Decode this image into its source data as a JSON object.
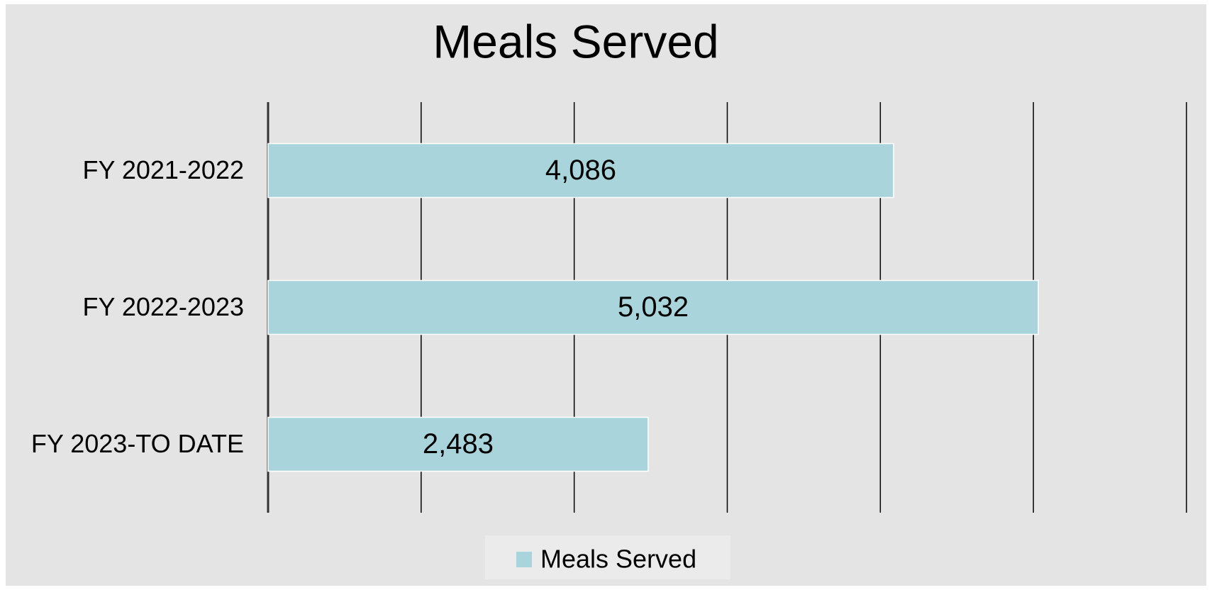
{
  "chart_data": {
    "type": "hbar",
    "title": "Meals Served",
    "categories": [
      "FY 2021-2022",
      "FY 2022-2023",
      "FY 2023-TO DATE"
    ],
    "series": [
      {
        "name": "Meals Served",
        "color": "#aad4dc",
        "values": [
          4086,
          5032,
          2483
        ],
        "value_labels": [
          "4,086",
          "5,032",
          "2,483"
        ]
      }
    ],
    "xlim": [
      0,
      6000
    ],
    "xticks": [
      0,
      1000,
      2000,
      3000,
      4000,
      5000,
      6000
    ],
    "grid": true,
    "legend": "bottom"
  }
}
